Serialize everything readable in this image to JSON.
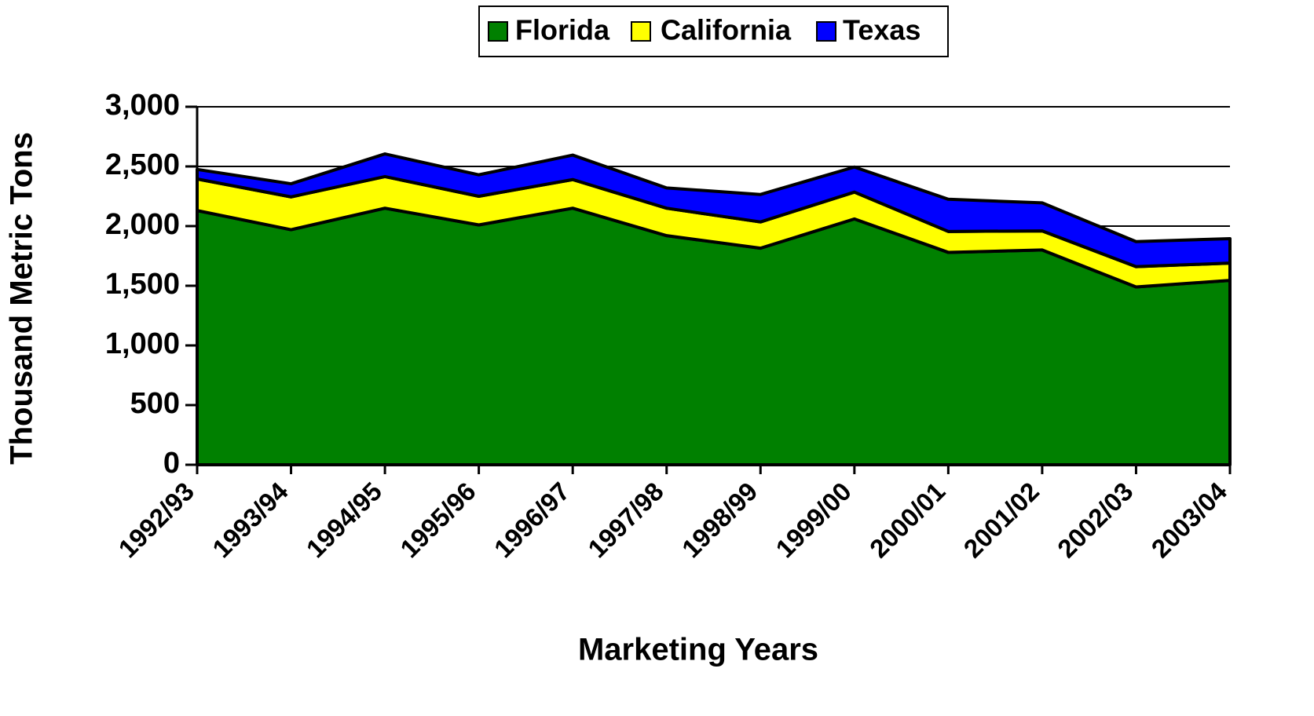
{
  "chart_data": {
    "type": "stacked_area",
    "x_label": "Marketing Years",
    "y_label": "Thousand Metric Tons",
    "categories": [
      "1992/93",
      "1993/94",
      "1994/95",
      "1995/96",
      "1996/97",
      "1997/98",
      "1998/99",
      "1999/00",
      "2000/01",
      "2001/02",
      "2002/03",
      "2003/04"
    ],
    "series": [
      {
        "name": "Florida",
        "color": "#008000",
        "values": [
          2130,
          1970,
          2150,
          2010,
          2150,
          1920,
          1815,
          2060,
          1780,
          1800,
          1490,
          1545
        ]
      },
      {
        "name": "California",
        "color": "#ffff00",
        "values": [
          265,
          275,
          265,
          240,
          240,
          230,
          220,
          225,
          175,
          160,
          170,
          145
        ]
      },
      {
        "name": "Texas",
        "color": "#0000ff",
        "values": [
          80,
          110,
          190,
          180,
          205,
          170,
          230,
          210,
          270,
          235,
          210,
          205
        ]
      }
    ],
    "ylim": [
      0,
      3000
    ],
    "yticks": [
      0,
      500,
      {
        "value": 1000,
        "label": "1,000"
      },
      {
        "value": 1500,
        "label": "1,500"
      },
      {
        "value": 2000,
        "label": "2,000"
      },
      {
        "value": 2500,
        "label": "2,500"
      },
      {
        "value": 3000,
        "label": "3,000"
      }
    ],
    "grid": true,
    "legend": "top"
  }
}
